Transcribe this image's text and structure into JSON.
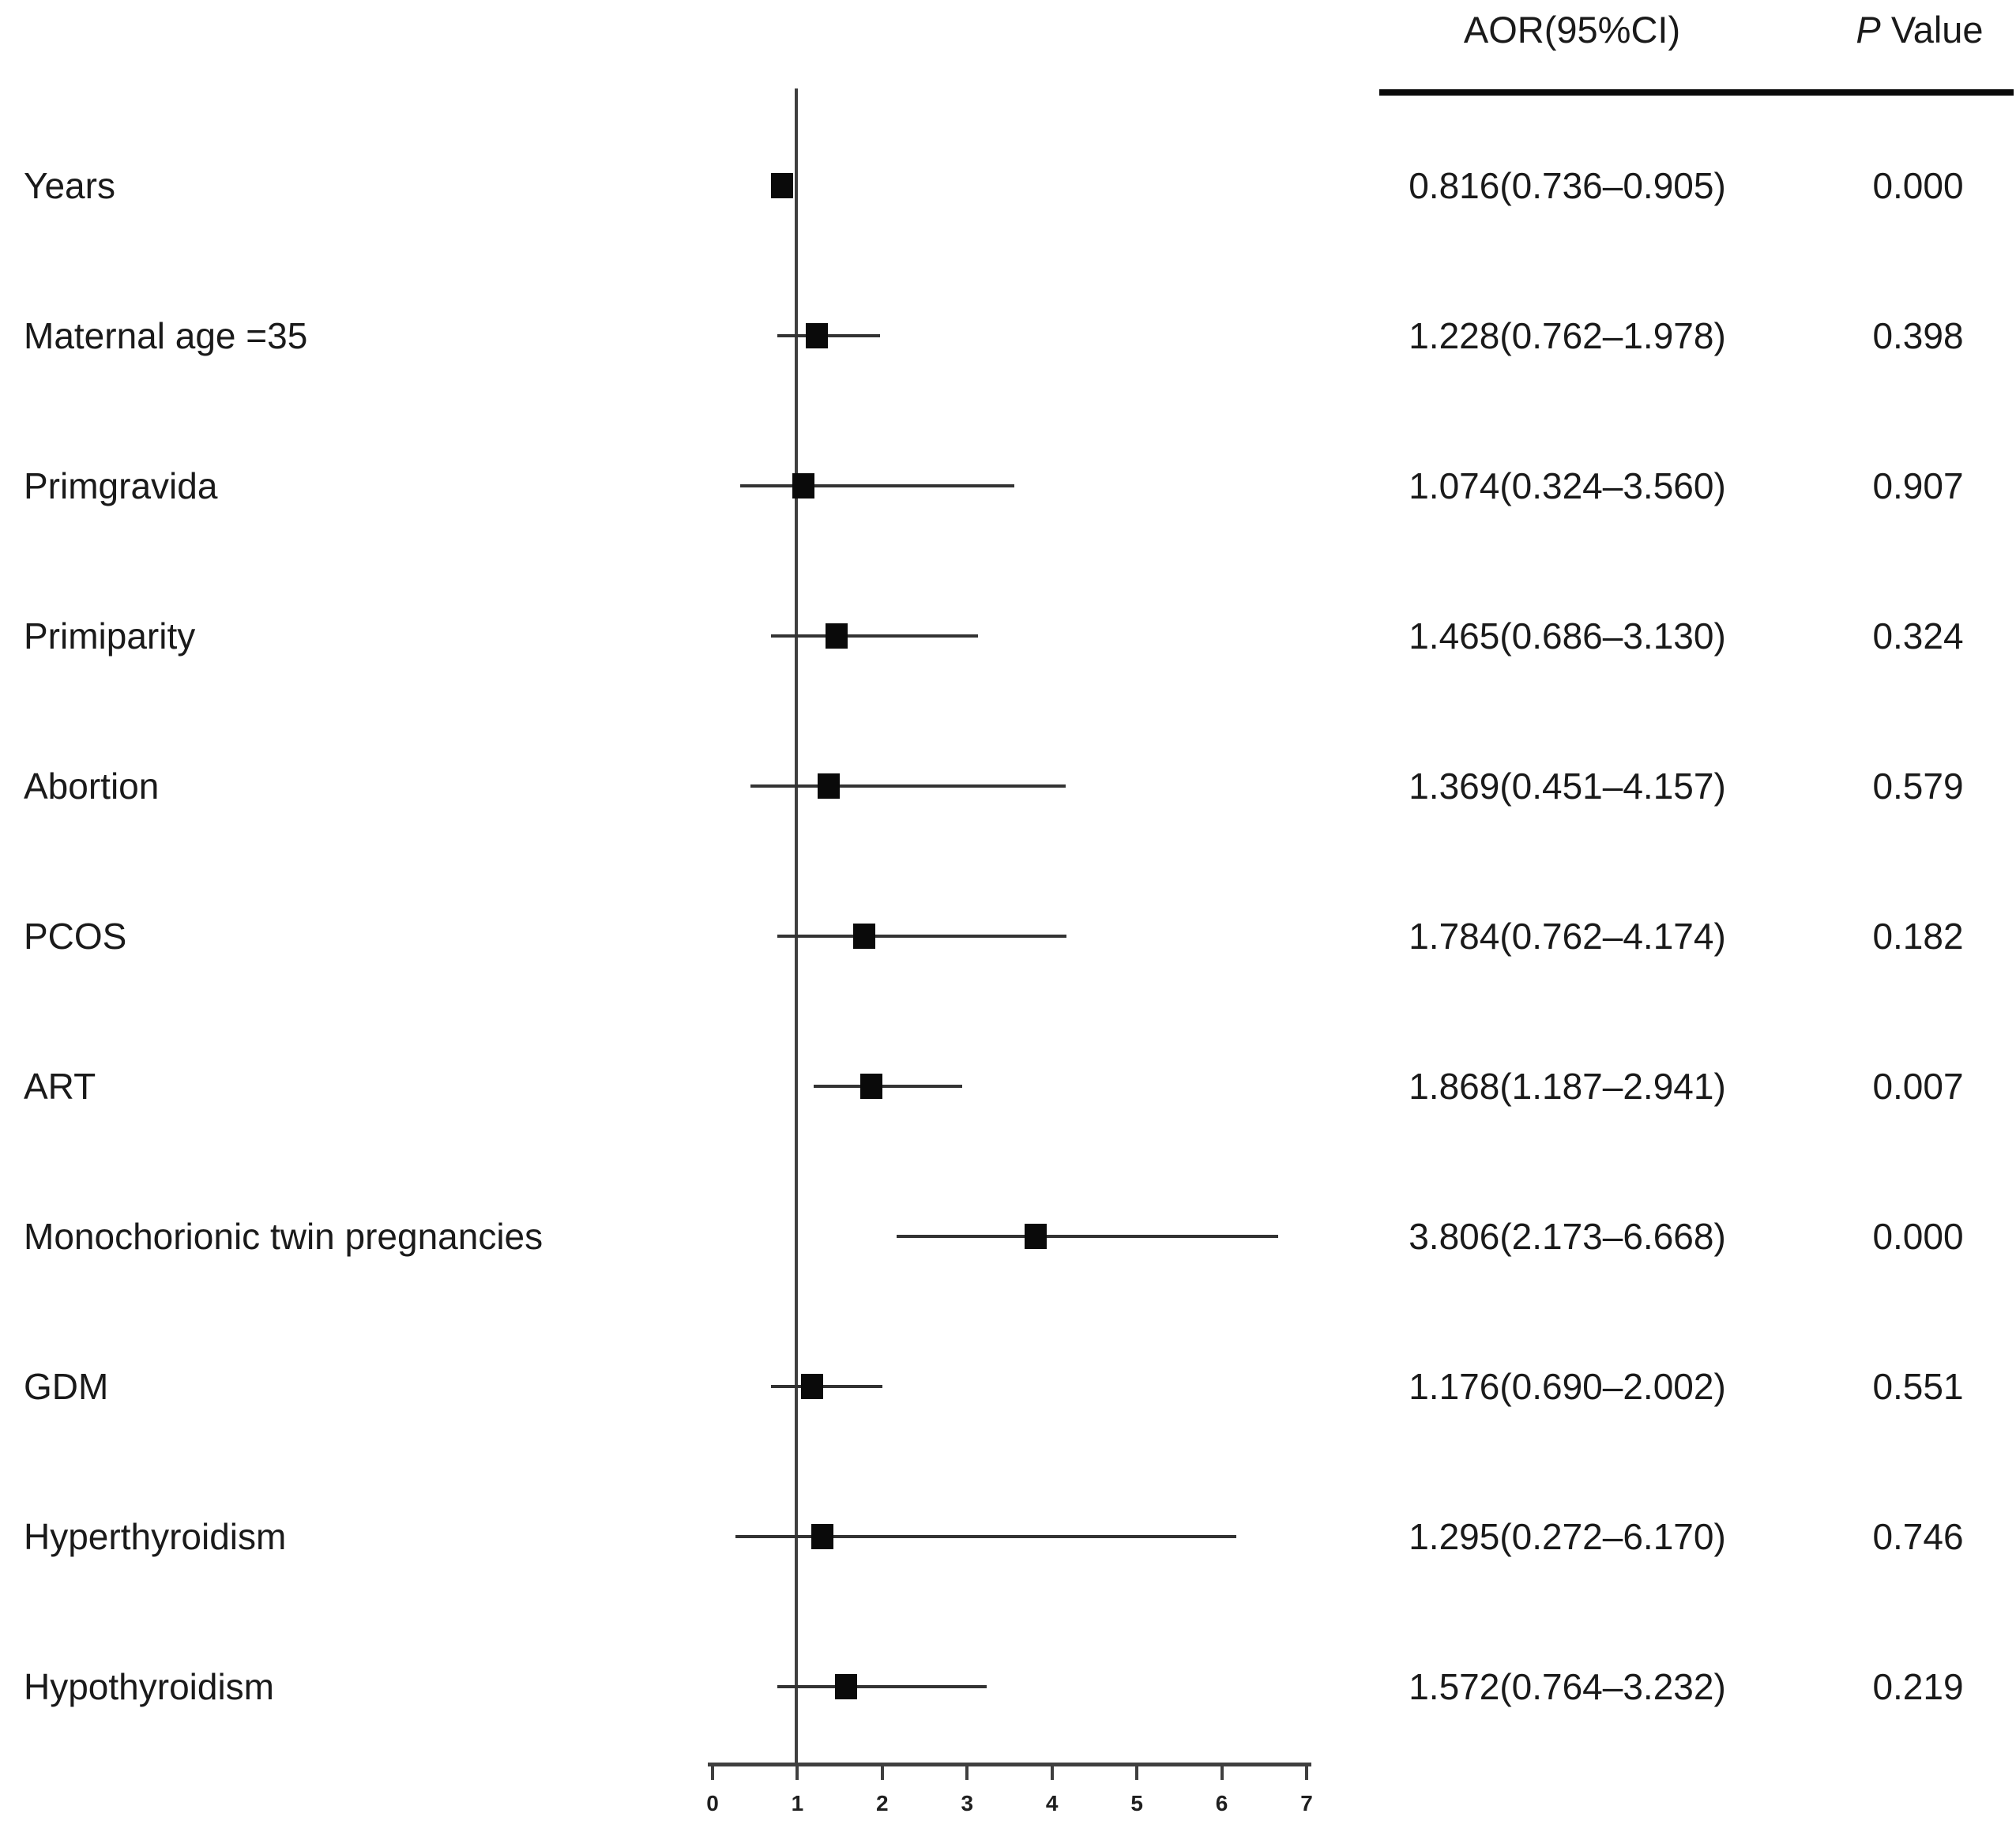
{
  "figure": {
    "header": {
      "aor": "AOR(95%CI)",
      "p_italic": "P",
      "p_rest": " Value"
    }
  },
  "chart_data": {
    "type": "forest",
    "title": "",
    "xlabel": "",
    "legend": "none",
    "x_axis": {
      "min": 0,
      "max": 7,
      "ticks": [
        "0",
        "1",
        "2",
        "3",
        "4",
        "5",
        "6",
        "7"
      ],
      "reference_line": 1
    },
    "columns": [
      "AOR(95%CI)",
      "P Value"
    ],
    "rows": [
      {
        "label": "Years",
        "aor": 0.816,
        "ci_low": 0.736,
        "ci_high": 0.905,
        "aor_ci_text": "0.816(0.736–0.905)",
        "p_value": "0.000"
      },
      {
        "label": "Maternal age =35",
        "aor": 1.228,
        "ci_low": 0.762,
        "ci_high": 1.978,
        "aor_ci_text": "1.228(0.762–1.978)",
        "p_value": "0.398"
      },
      {
        "label": "Primgravida",
        "aor": 1.074,
        "ci_low": 0.324,
        "ci_high": 3.56,
        "aor_ci_text": "1.074(0.324–3.560)",
        "p_value": "0.907"
      },
      {
        "label": "Primiparity",
        "aor": 1.465,
        "ci_low": 0.686,
        "ci_high": 3.13,
        "aor_ci_text": "1.465(0.686–3.130)",
        "p_value": "0.324"
      },
      {
        "label": "Abortion",
        "aor": 1.369,
        "ci_low": 0.451,
        "ci_high": 4.157,
        "aor_ci_text": "1.369(0.451–4.157)",
        "p_value": "0.579"
      },
      {
        "label": "PCOS",
        "aor": 1.784,
        "ci_low": 0.762,
        "ci_high": 4.174,
        "aor_ci_text": "1.784(0.762–4.174)",
        "p_value": "0.182"
      },
      {
        "label": "ART",
        "aor": 1.868,
        "ci_low": 1.187,
        "ci_high": 2.941,
        "aor_ci_text": "1.868(1.187–2.941)",
        "p_value": "0.007"
      },
      {
        "label": "Monochorionic twin pregnancies",
        "aor": 3.806,
        "ci_low": 2.173,
        "ci_high": 6.668,
        "aor_ci_text": "3.806(2.173–6.668)",
        "p_value": "0.000"
      },
      {
        "label": "GDM",
        "aor": 1.176,
        "ci_low": 0.69,
        "ci_high": 2.002,
        "aor_ci_text": "1.176(0.690–2.002)",
        "p_value": "0.551"
      },
      {
        "label": "Hyperthyroidism",
        "aor": 1.295,
        "ci_low": 0.272,
        "ci_high": 6.17,
        "aor_ci_text": "1.295(0.272–6.170)",
        "p_value": "0.746"
      },
      {
        "label": "Hypothyroidism",
        "aor": 1.572,
        "ci_low": 0.764,
        "ci_high": 3.232,
        "aor_ci_text": "1.572(0.764–3.232)",
        "p_value": "0.219"
      }
    ]
  }
}
